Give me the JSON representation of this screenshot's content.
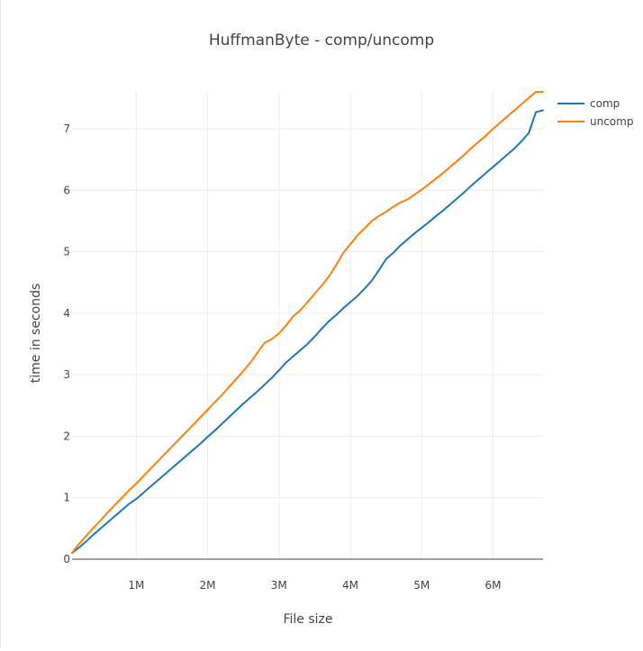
{
  "chart_data": {
    "type": "line",
    "title": "HuffmanByte - comp/uncomp",
    "xlabel": "File size",
    "ylabel": "time in seconds",
    "xlim": [
      100000,
      6700000
    ],
    "ylim": [
      0,
      7.6
    ],
    "x_ticks": [
      1000000,
      2000000,
      3000000,
      4000000,
      5000000,
      6000000
    ],
    "x_tick_labels": [
      "1M",
      "2M",
      "3M",
      "4M",
      "5M",
      "6M"
    ],
    "y_ticks": [
      0,
      1,
      2,
      3,
      4,
      5,
      6,
      7
    ],
    "y_tick_labels": [
      "0",
      "1",
      "2",
      "3",
      "4",
      "5",
      "6",
      "7"
    ],
    "grid": true,
    "legend_position": "top-right",
    "series": [
      {
        "name": "comp",
        "color": "#1f77b4",
        "x": [
          100000,
          200000,
          300000,
          400000,
          500000,
          600000,
          700000,
          800000,
          900000,
          1000000,
          1100000,
          1200000,
          1300000,
          1400000,
          1500000,
          1600000,
          1700000,
          1800000,
          1900000,
          2000000,
          2100000,
          2200000,
          2300000,
          2400000,
          2500000,
          2600000,
          2700000,
          2800000,
          2900000,
          3000000,
          3100000,
          3200000,
          3300000,
          3400000,
          3500000,
          3600000,
          3700000,
          3800000,
          3900000,
          4000000,
          4100000,
          4200000,
          4300000,
          4400000,
          4500000,
          4600000,
          4700000,
          4800000,
          4900000,
          5000000,
          5100000,
          5200000,
          5300000,
          5400000,
          5500000,
          5600000,
          5700000,
          5800000,
          5900000,
          6000000,
          6100000,
          6200000,
          6300000,
          6400000,
          6500000,
          6600000,
          6700000
        ],
        "y": [
          0.1,
          0.19,
          0.29,
          0.4,
          0.5,
          0.6,
          0.7,
          0.8,
          0.9,
          0.98,
          1.08,
          1.18,
          1.28,
          1.38,
          1.48,
          1.58,
          1.68,
          1.78,
          1.88,
          1.99,
          2.09,
          2.2,
          2.31,
          2.42,
          2.53,
          2.63,
          2.73,
          2.84,
          2.95,
          3.07,
          3.2,
          3.3,
          3.4,
          3.5,
          3.62,
          3.75,
          3.87,
          3.97,
          4.08,
          4.18,
          4.28,
          4.4,
          4.53,
          4.7,
          4.88,
          4.98,
          5.1,
          5.2,
          5.3,
          5.39,
          5.48,
          5.58,
          5.67,
          5.77,
          5.87,
          5.97,
          6.08,
          6.18,
          6.28,
          6.38,
          6.48,
          6.58,
          6.68,
          6.8,
          6.93,
          7.27,
          7.3
        ]
      },
      {
        "name": "uncomp",
        "color": "#ff7f0e",
        "x": [
          100000,
          200000,
          300000,
          400000,
          500000,
          600000,
          700000,
          800000,
          900000,
          1000000,
          1100000,
          1200000,
          1300000,
          1400000,
          1500000,
          1600000,
          1700000,
          1800000,
          1900000,
          2000000,
          2100000,
          2200000,
          2300000,
          2400000,
          2500000,
          2600000,
          2700000,
          2800000,
          2900000,
          3000000,
          3100000,
          3200000,
          3300000,
          3400000,
          3500000,
          3600000,
          3700000,
          3800000,
          3900000,
          4000000,
          4100000,
          4200000,
          4300000,
          4400000,
          4500000,
          4600000,
          4700000,
          4800000,
          4900000,
          5000000,
          5100000,
          5200000,
          5300000,
          5400000,
          5500000,
          5600000,
          5700000,
          5800000,
          5900000,
          6000000,
          6100000,
          6200000,
          6300000,
          6400000,
          6500000,
          6600000,
          6700000
        ],
        "y": [
          0.1,
          0.25,
          0.38,
          0.51,
          0.63,
          0.76,
          0.88,
          1.0,
          1.12,
          1.23,
          1.35,
          1.47,
          1.59,
          1.71,
          1.83,
          1.95,
          2.07,
          2.19,
          2.31,
          2.43,
          2.55,
          2.67,
          2.8,
          2.93,
          3.06,
          3.2,
          3.36,
          3.52,
          3.58,
          3.67,
          3.8,
          3.95,
          4.05,
          4.18,
          4.32,
          4.45,
          4.6,
          4.78,
          4.98,
          5.12,
          5.27,
          5.38,
          5.5,
          5.58,
          5.65,
          5.73,
          5.8,
          5.85,
          5.93,
          6.01,
          6.1,
          6.19,
          6.28,
          6.38,
          6.48,
          6.58,
          6.69,
          6.79,
          6.89,
          7.0,
          7.1,
          7.2,
          7.3,
          7.4,
          7.5,
          7.6,
          7.6
        ]
      }
    ]
  }
}
